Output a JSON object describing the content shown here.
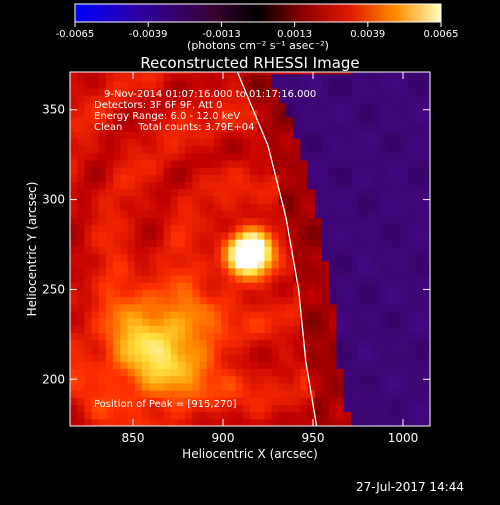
{
  "chart_data": {
    "type": "heatmap",
    "title": "Reconstructed RHESSI Image",
    "xlabel": "Heliocentric X (arcsec)",
    "ylabel": "Heliocentric Y (arcsec)",
    "xlim": [
      815,
      1015
    ],
    "ylim": [
      174,
      371
    ],
    "x_ticks": [
      850,
      900,
      950,
      1000
    ],
    "y_ticks": [
      200,
      250,
      300,
      350
    ],
    "colorbar": {
      "min": -0.0065,
      "max": 0.0065,
      "ticks": [
        "-0.0065",
        "-0.0039",
        "-0.0013",
        "0.0013",
        "0.0039",
        "0.0065"
      ],
      "unit": "(photons cm⁻² s⁻¹ asec⁻²)",
      "colors": [
        "#0000ff",
        "#2a0080",
        "#3a0040",
        "#000000",
        "#700000",
        "#c00000",
        "#ff3000",
        "#ff9000",
        "#ffe040",
        "#ffffff"
      ]
    },
    "annotations": [
      "9-Nov-2014 01:07:16.000 to 01:17:16.000",
      "Detectors: 3F 6F 9F, Att 0",
      "Energy Range: 6.0 - 12.0 keV",
      "Clean     Total counts: 3.79E+04",
      "Position of Peak = [915,270]"
    ],
    "peak": [
      915,
      270
    ],
    "limb": [
      [
        908,
        371
      ],
      [
        925,
        330
      ],
      [
        935,
        290
      ],
      [
        942,
        250
      ],
      [
        946,
        210
      ],
      [
        952,
        174
      ]
    ]
  },
  "timestamp": "27-Jul-2017 14:44"
}
